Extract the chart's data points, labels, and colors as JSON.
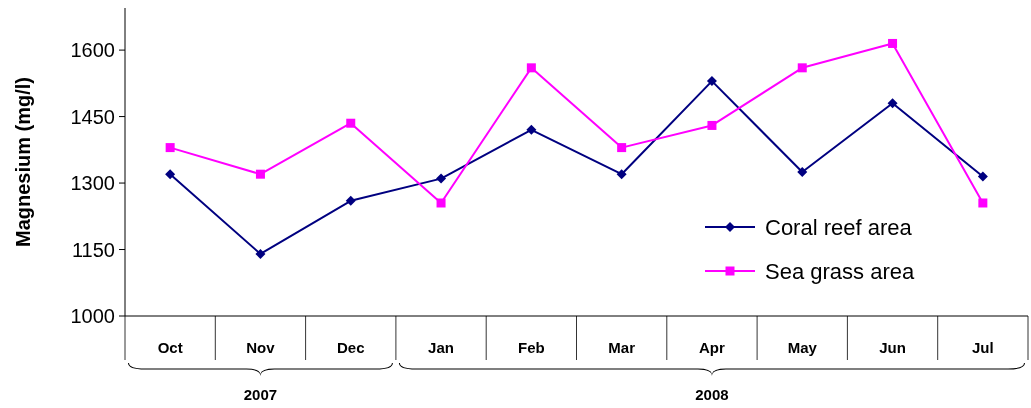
{
  "chart_data": {
    "type": "line",
    "ylabel": "Magnesium (mg/l)",
    "categories": [
      "Oct",
      "Nov",
      "Dec",
      "Jan",
      "Feb",
      "Mar",
      "Apr",
      "May",
      "Jun",
      "Jul"
    ],
    "series": [
      {
        "name": "Coral reef area",
        "color": "#000080",
        "marker": "diamond",
        "values": [
          1320,
          1140,
          1260,
          1310,
          1420,
          1320,
          1530,
          1325,
          1480,
          1315
        ]
      },
      {
        "name": "Sea grass area",
        "color": "#ff00ff",
        "marker": "square",
        "values": [
          1380,
          1320,
          1435,
          1255,
          1560,
          1380,
          1430,
          1560,
          1615,
          1255
        ]
      }
    ],
    "ylim": [
      1000,
      1695
    ],
    "yticks": [
      1000,
      1150,
      1300,
      1450,
      1600
    ],
    "grid": false,
    "legend": "bottom right",
    "line_style": "solid",
    "annotations": [
      "2007",
      "2008"
    ]
  }
}
